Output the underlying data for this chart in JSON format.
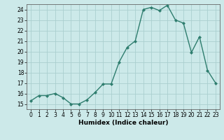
{
  "x": [
    0,
    1,
    2,
    3,
    4,
    5,
    6,
    7,
    8,
    9,
    10,
    11,
    12,
    13,
    14,
    15,
    16,
    17,
    18,
    19,
    20,
    21,
    22,
    23
  ],
  "y": [
    15.3,
    15.8,
    15.8,
    16.0,
    15.6,
    15.0,
    15.0,
    15.4,
    16.1,
    16.9,
    16.9,
    19.0,
    20.4,
    21.0,
    24.0,
    24.2,
    23.9,
    24.4,
    23.0,
    22.7,
    19.9,
    21.4,
    18.2,
    17.0
  ],
  "line_color": "#2e7d6e",
  "marker": "D",
  "marker_size": 2.0,
  "line_width": 1.0,
  "bg_color": "#cce9e9",
  "grid_color": "#aacfcf",
  "xlabel": "Humidex (Indice chaleur)",
  "xlim": [
    -0.5,
    23.5
  ],
  "ylim": [
    14.5,
    24.5
  ],
  "yticks": [
    15,
    16,
    17,
    18,
    19,
    20,
    21,
    22,
    23,
    24
  ],
  "xticks": [
    0,
    1,
    2,
    3,
    4,
    5,
    6,
    7,
    8,
    9,
    10,
    11,
    12,
    13,
    14,
    15,
    16,
    17,
    18,
    19,
    20,
    21,
    22,
    23
  ],
  "tick_fontsize": 5.5,
  "label_fontsize": 6.5
}
